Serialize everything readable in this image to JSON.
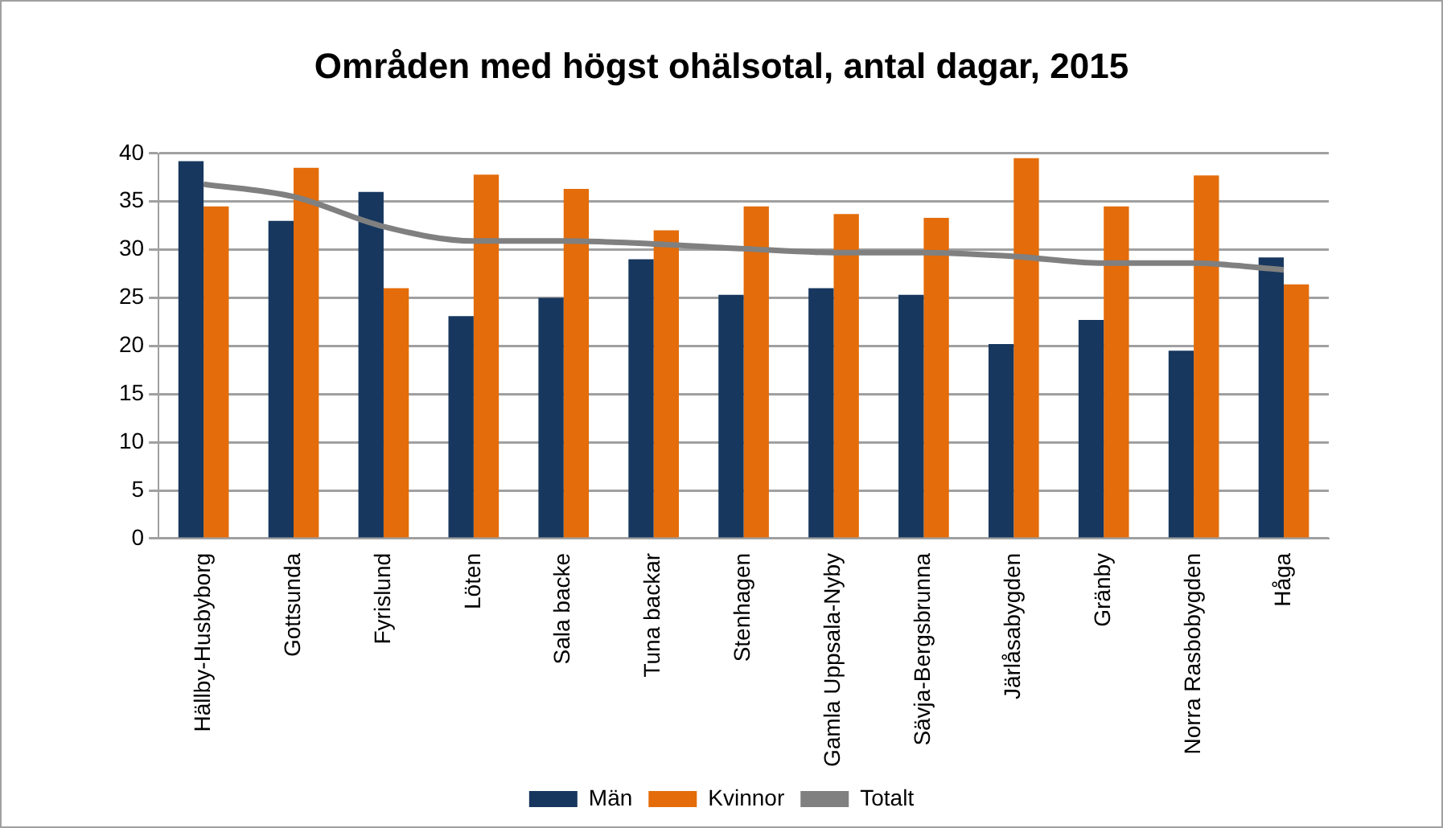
{
  "chart_data": {
    "type": "bar",
    "title": "Områden med högst ohälsotal, antal dagar, 2015",
    "categories": [
      "Hällby-Husbyborg",
      "Gottsunda",
      "Fyrislund",
      "Löten",
      "Sala backe",
      "Tuna backar",
      "Stenhagen",
      "Gamla Uppsala-Nyby",
      "Sävja-Bergsbrunna",
      "Järlåsabygden",
      "Gränby",
      "Norra Rasbobygden",
      "Håga"
    ],
    "series": [
      {
        "name": "Män",
        "color": "#17375e",
        "values": [
          39.2,
          33,
          36,
          23.1,
          25,
          29,
          25.3,
          26,
          25.3,
          20.2,
          22.7,
          19.5,
          29.2
        ]
      },
      {
        "name": "Kvinnor",
        "color": "#e46c0a",
        "values": [
          34.5,
          38.5,
          26,
          37.8,
          36.3,
          32,
          34.5,
          33.7,
          33.3,
          39.5,
          34.5,
          37.7,
          26.4
        ]
      },
      {
        "name": "Totalt",
        "type": "line",
        "color": "#808080",
        "values": [
          36.8,
          35.5,
          32.4,
          30.9,
          30.9,
          30.6,
          30.1,
          29.7,
          29.7,
          29.3,
          28.6,
          28.6,
          27.9
        ]
      }
    ],
    "ylim": [
      0,
      40
    ],
    "yticks": [
      0,
      5,
      10,
      15,
      20,
      25,
      30,
      35,
      40
    ],
    "grid": "y",
    "legend": "bottom",
    "marker": "none"
  }
}
